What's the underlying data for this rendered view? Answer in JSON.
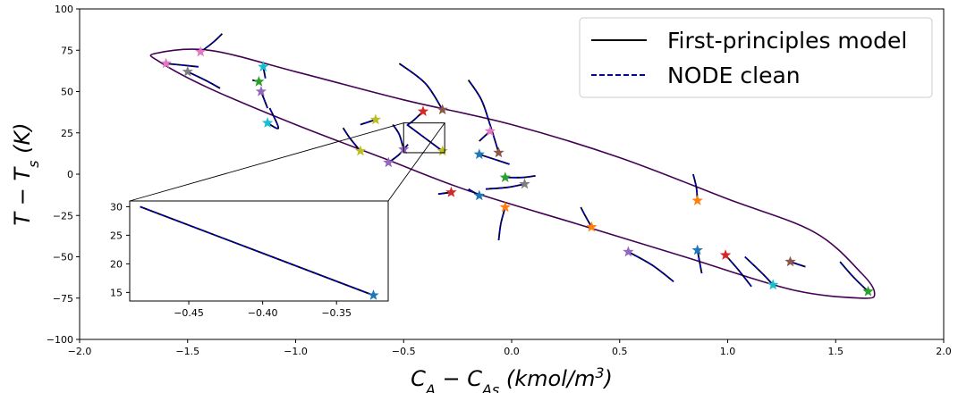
{
  "chart_data": {
    "type": "line",
    "xlabel": "C_A − C_As (kmol/m³)",
    "ylabel": "T − T_s (K)",
    "xlim": [
      -2.0,
      2.0
    ],
    "ylim": [
      -100,
      100
    ],
    "xticks": [
      -2.0,
      -1.5,
      -1.0,
      -0.5,
      0.0,
      0.5,
      1.0,
      1.5,
      2.0
    ],
    "yticks": [
      -100,
      -75,
      -50,
      -25,
      0,
      25,
      50,
      75,
      100
    ],
    "grid": false,
    "legend_position": "top-right",
    "series": [
      {
        "name": "First-principles model",
        "style": "solid",
        "color": "#000000"
      },
      {
        "name": "NODE clean",
        "style": "dashed",
        "color": "#0000cc"
      }
    ],
    "ellipse": {
      "color": "#440154",
      "boundary": [
        [
          -1.65,
          73
        ],
        [
          -1.4,
          75
        ],
        [
          -1.0,
          62
        ],
        [
          -0.5,
          45
        ],
        [
          0.0,
          30
        ],
        [
          0.5,
          10
        ],
        [
          1.0,
          -15
        ],
        [
          1.4,
          -35
        ],
        [
          1.62,
          -60
        ],
        [
          1.68,
          -72
        ],
        [
          1.62,
          -75
        ],
        [
          1.3,
          -70
        ],
        [
          0.8,
          -50
        ],
        [
          0.3,
          -30
        ],
        [
          -0.2,
          -10
        ],
        [
          -0.6,
          10
        ],
        [
          -1.0,
          30
        ],
        [
          -1.4,
          52
        ],
        [
          -1.63,
          68
        ]
      ]
    },
    "trajectories": [
      {
        "star": [
          -1.6,
          67
        ],
        "color": "#e377c2",
        "path": [
          [
            -1.6,
            67
          ],
          [
            -1.45,
            65
          ]
        ]
      },
      {
        "star": [
          -1.44,
          74
        ],
        "color": "#e377c2",
        "path": [
          [
            -1.44,
            74
          ],
          [
            -1.38,
            80
          ],
          [
            -1.34,
            85
          ]
        ]
      },
      {
        "star": [
          -1.5,
          62
        ],
        "color": "#7f7f7f",
        "path": [
          [
            -1.5,
            62
          ],
          [
            -1.42,
            57
          ],
          [
            -1.35,
            52
          ]
        ]
      },
      {
        "star": [
          -1.15,
          65
        ],
        "color": "#17becf",
        "path": [
          [
            -1.15,
            65
          ],
          [
            -1.14,
            58
          ]
        ]
      },
      {
        "star": [
          -1.17,
          56
        ],
        "color": "#2ca02c",
        "path": [
          [
            -1.17,
            56
          ],
          [
            -1.2,
            57
          ]
        ]
      },
      {
        "star": [
          -1.16,
          50
        ],
        "color": "#9467bd",
        "path": [
          [
            -1.16,
            50
          ],
          [
            -1.13,
            40
          ]
        ]
      },
      {
        "star": [
          -1.13,
          31
        ],
        "color": "#17becf",
        "path": [
          [
            -1.13,
            31
          ],
          [
            -1.08,
            28
          ],
          [
            -1.12,
            40
          ]
        ]
      },
      {
        "star": [
          -0.63,
          33
        ],
        "color": "#bcbd22",
        "path": [
          [
            -0.63,
            33
          ],
          [
            -0.7,
            30
          ]
        ]
      },
      {
        "star": [
          -0.7,
          14
        ],
        "color": "#bcbd22",
        "path": [
          [
            -0.7,
            14
          ],
          [
            -0.75,
            22
          ],
          [
            -0.78,
            28
          ]
        ]
      },
      {
        "star": [
          -0.57,
          7
        ],
        "color": "#9467bd",
        "path": [
          [
            -0.57,
            7
          ],
          [
            -0.52,
            12
          ],
          [
            -0.48,
            18
          ]
        ]
      },
      {
        "star": [
          -0.5,
          15
        ],
        "color": "#9467bd",
        "path": [
          [
            -0.5,
            15
          ],
          [
            -0.52,
            24
          ],
          [
            -0.55,
            30
          ]
        ]
      },
      {
        "star": [
          -0.41,
          38
        ],
        "color": "#d62728",
        "path": [
          [
            -0.41,
            38
          ],
          [
            -0.45,
            33
          ],
          [
            -0.48,
            30
          ]
        ]
      },
      {
        "star": [
          -0.32,
          14
        ],
        "color": "#bcbd22",
        "path": [
          [
            -0.485,
            30
          ],
          [
            -0.32,
            14
          ]
        ]
      },
      {
        "star": [
          -0.32,
          39
        ],
        "color": "#8c564b",
        "path": [
          [
            -0.32,
            39
          ],
          [
            -0.4,
            55
          ],
          [
            -0.52,
            67
          ]
        ]
      },
      {
        "star": [
          -0.15,
          12
        ],
        "color": "#1f77b4",
        "path": [
          [
            -0.15,
            12
          ],
          [
            -0.08,
            9
          ],
          [
            -0.01,
            6
          ]
        ]
      },
      {
        "star": [
          -0.06,
          13
        ],
        "color": "#8c564b",
        "path": [
          [
            -0.06,
            13
          ],
          [
            -0.1,
            30
          ],
          [
            -0.14,
            45
          ],
          [
            -0.2,
            57
          ]
        ]
      },
      {
        "star": [
          -0.1,
          26
        ],
        "color": "#e377c2",
        "path": [
          [
            -0.1,
            26
          ],
          [
            -0.15,
            20
          ]
        ]
      },
      {
        "star": [
          -0.03,
          -2
        ],
        "color": "#2ca02c",
        "path": [
          [
            -0.03,
            -2
          ],
          [
            0.05,
            -2
          ],
          [
            0.11,
            -1
          ]
        ]
      },
      {
        "star": [
          0.06,
          -6
        ],
        "color": "#7f7f7f",
        "path": [
          [
            0.06,
            -6
          ],
          [
            -0.02,
            -8
          ],
          [
            -0.12,
            -9
          ]
        ]
      },
      {
        "star": [
          -0.15,
          -13
        ],
        "color": "#1f77b4",
        "path": [
          [
            -0.15,
            -13
          ],
          [
            -0.2,
            -9
          ]
        ]
      },
      {
        "star": [
          -0.28,
          -11
        ],
        "color": "#d62728",
        "path": [
          [
            -0.28,
            -11
          ],
          [
            -0.34,
            -12
          ]
        ]
      },
      {
        "star": [
          -0.03,
          -20
        ],
        "color": "#ff7f0e",
        "path": [
          [
            -0.03,
            -20
          ],
          [
            -0.05,
            -30
          ],
          [
            -0.06,
            -40
          ]
        ]
      },
      {
        "star": [
          0.37,
          -32
        ],
        "color": "#ff7f0e",
        "path": [
          [
            0.37,
            -32
          ],
          [
            0.34,
            -25
          ],
          [
            0.32,
            -20
          ]
        ]
      },
      {
        "star": [
          0.54,
          -47
        ],
        "color": "#9467bd",
        "path": [
          [
            0.54,
            -47
          ],
          [
            0.65,
            -55
          ],
          [
            0.75,
            -65
          ]
        ]
      },
      {
        "star": [
          0.86,
          -16
        ],
        "color": "#ff7f0e",
        "path": [
          [
            0.86,
            -16
          ],
          [
            0.855,
            -8
          ],
          [
            0.84,
            0
          ]
        ]
      },
      {
        "star": [
          0.86,
          -46
        ],
        "color": "#1f77b4",
        "path": [
          [
            0.86,
            -46
          ],
          [
            0.88,
            -60
          ]
        ]
      },
      {
        "star": [
          0.99,
          -49
        ],
        "color": "#d62728",
        "path": [
          [
            0.99,
            -49
          ],
          [
            1.05,
            -58
          ],
          [
            1.11,
            -68
          ]
        ]
      },
      {
        "star": [
          1.21,
          -67
        ],
        "color": "#17becf",
        "path": [
          [
            1.21,
            -67
          ],
          [
            1.16,
            -60
          ],
          [
            1.08,
            -50
          ]
        ]
      },
      {
        "star": [
          1.29,
          -53
        ],
        "color": "#8c564b",
        "path": [
          [
            1.29,
            -53
          ],
          [
            1.36,
            -56
          ]
        ]
      },
      {
        "star": [
          1.65,
          -71
        ],
        "color": "#2ca02c",
        "path": [
          [
            1.65,
            -71
          ],
          [
            1.58,
            -62
          ],
          [
            1.52,
            -53
          ]
        ]
      }
    ],
    "inset": {
      "xlim": [
        -0.49,
        -0.315
      ],
      "ylim": [
        13.5,
        31
      ],
      "xticks": [
        -0.45,
        -0.4,
        -0.35
      ],
      "yticks": [
        15,
        20,
        25,
        30
      ],
      "zoom_box": {
        "x": [
          -0.5,
          -0.31
        ],
        "y": [
          13,
          31
        ]
      },
      "star": [
        -0.325,
        14.5
      ],
      "star_color": "#1f77b4",
      "path": [
        [
          -0.483,
          30
        ],
        [
          -0.325,
          14.5
        ]
      ]
    }
  }
}
